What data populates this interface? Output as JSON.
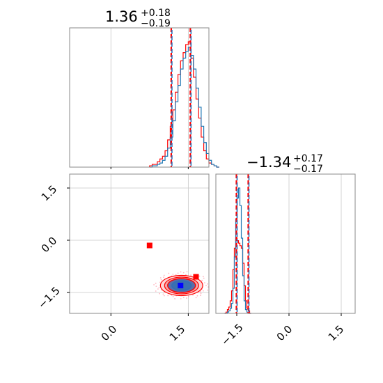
{
  "chart_data": {
    "type": "corner",
    "parameters": [
      {
        "title_main": "1.36",
        "title_plus": "+0.18",
        "title_minus": "−0.19",
        "median": 1.36,
        "lower": 1.17,
        "upper": 1.54,
        "xlim": [
          -0.8,
          1.9
        ]
      },
      {
        "title_main": "−1.34",
        "title_plus": "+0.17",
        "title_minus": "−0.17",
        "median": -1.34,
        "lower": -1.51,
        "upper": -1.17,
        "xlim": [
          -2.1,
          1.9
        ]
      }
    ],
    "x_ticks": [
      {
        "value": 0.0,
        "label": "0.0"
      },
      {
        "value": 1.5,
        "label": "1.5"
      }
    ],
    "y_ticks": [
      {
        "value": 1.5,
        "label": "1.5"
      },
      {
        "value": 0.0,
        "label": "0.0"
      },
      {
        "value": -1.5,
        "label": "−1.5"
      }
    ],
    "x2_ticks": [
      {
        "value": -1.5,
        "label": "−1.5"
      },
      {
        "value": 0.0,
        "label": "0.0"
      },
      {
        "value": 1.5,
        "label": "1.5"
      }
    ],
    "scatter_ylim": [
      -2.1,
      1.9
    ],
    "hist1_bins": {
      "start": 0.75,
      "width": 0.05,
      "blue": [
        0,
        1,
        1,
        2,
        3,
        5,
        8,
        14,
        22,
        34,
        48,
        60,
        72,
        80,
        85,
        88,
        82,
        72,
        58,
        44,
        30,
        18,
        10,
        5,
        2,
        1,
        0
      ],
      "red": [
        1,
        2,
        2,
        4,
        6,
        8,
        12,
        20,
        30,
        42,
        55,
        68,
        78,
        84,
        90,
        92,
        80,
        66,
        50,
        36,
        22,
        12,
        6,
        3,
        2,
        1,
        0
      ]
    },
    "hist2_bins": {
      "start": -1.85,
      "width": 0.04,
      "blue": [
        0,
        0,
        1,
        2,
        4,
        8,
        20,
        45,
        75,
        92,
        100,
        86,
        60,
        30,
        10,
        3,
        1,
        0,
        0
      ],
      "red": [
        0,
        1,
        3,
        5,
        10,
        18,
        35,
        52,
        60,
        58,
        56,
        54,
        52,
        40,
        22,
        10,
        4,
        2,
        0
      ]
    },
    "points": [
      {
        "x": 0.75,
        "y": -0.15,
        "color": "#ff0000"
      },
      {
        "x": 1.65,
        "y": -1.05,
        "color": "#ff0000"
      },
      {
        "x": 1.35,
        "y": -1.3,
        "color": "#0000ff"
      }
    ],
    "contour_center": {
      "x": 1.37,
      "y": -1.3
    },
    "contour_radii": [
      {
        "rx": 0.27,
        "ry": 0.2
      },
      {
        "rx": 0.33,
        "ry": 0.24
      },
      {
        "rx": 0.41,
        "ry": 0.29
      }
    ],
    "grid": true,
    "colors": {
      "blue": "#1f77b4",
      "red": "#ff0000",
      "steel": "#2c6fb8",
      "pink": "#ff9aa8"
    }
  }
}
